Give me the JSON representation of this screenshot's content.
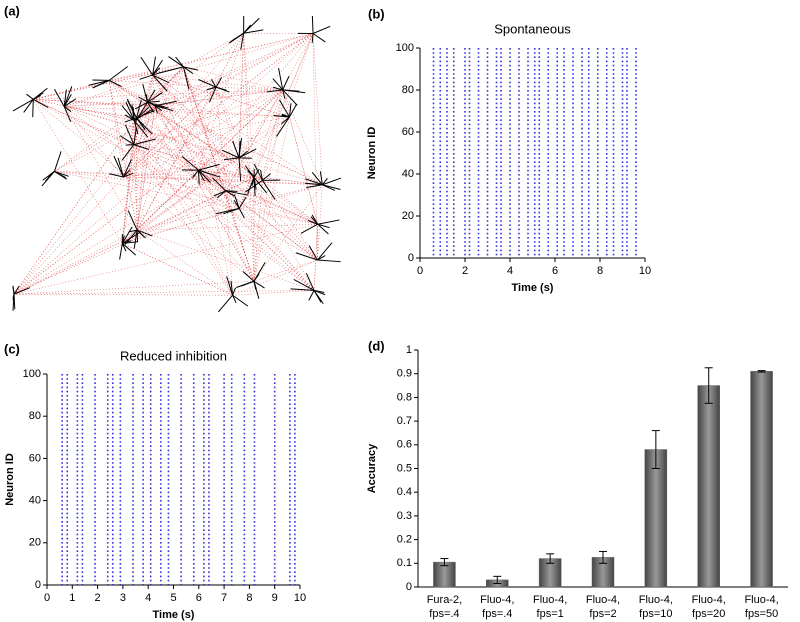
{
  "panel_labels": [
    "(a)",
    "(b)",
    "(c)",
    "(d)"
  ],
  "chart_data": [
    {
      "type": "raster",
      "title": "Spontaneous",
      "x_label": "Time (s)",
      "y_label": "Neuron ID",
      "color": "#3333dd",
      "x": [
        0.6,
        0.9,
        1.2,
        1.5,
        2.0,
        2.2,
        2.6,
        3.0,
        3.4,
        3.6,
        4.0,
        4.4,
        4.8,
        5.1,
        5.3,
        5.7,
        6.1,
        6.4,
        6.8,
        7.2,
        7.5,
        7.9,
        8.3,
        8.6,
        9.0,
        9.2,
        9.6
      ],
      "xlim": [
        0,
        10
      ],
      "xticks": [
        0,
        2,
        4,
        6,
        8,
        10
      ],
      "ylim": [
        0,
        100
      ],
      "yticks": [
        0,
        20,
        40,
        60,
        80,
        100
      ]
    },
    {
      "type": "raster",
      "title": "Reduced inhibition",
      "x_label": "Time (s)",
      "y_label": "Neuron ID",
      "color": "#3333dd",
      "x": [
        0.6,
        0.8,
        1.2,
        1.4,
        1.9,
        2.4,
        2.6,
        2.9,
        3.4,
        3.8,
        4.1,
        4.5,
        4.8,
        5.3,
        5.8,
        6.2,
        6.4,
        7.0,
        7.3,
        7.8,
        8.2,
        9.0,
        9.6,
        9.8
      ],
      "xlim": [
        0,
        10
      ],
      "xticks": [
        0,
        1,
        2,
        3,
        4,
        5,
        6,
        7,
        8,
        9,
        10
      ],
      "ylim": [
        0,
        100
      ],
      "yticks": [
        0,
        20,
        40,
        60,
        80,
        100
      ]
    },
    {
      "type": "bar",
      "y_label": "Accuracy",
      "color": "#666666",
      "categories": [
        [
          "Fura-2,",
          "fps=.4"
        ],
        [
          "Fluo-4,",
          "fps=.4"
        ],
        [
          "Fluo-4,",
          "fps=1"
        ],
        [
          "Fluo-4,",
          "fps=2"
        ],
        [
          "Fluo-4,",
          "fps=10"
        ],
        [
          "Fluo-4,",
          "fps=20"
        ],
        [
          "Fluo-4,",
          "fps=50"
        ]
      ],
      "values": [
        0.105,
        0.03,
        0.12,
        0.125,
        0.58,
        0.85,
        0.91
      ],
      "errors": [
        0.015,
        0.015,
        0.02,
        0.025,
        0.08,
        0.075,
        0.003
      ],
      "ylim": [
        0,
        1
      ],
      "yticks": [
        0,
        0.1,
        0.2,
        0.3,
        0.4,
        0.5,
        0.6,
        0.7,
        0.8,
        0.9,
        1
      ]
    }
  ]
}
